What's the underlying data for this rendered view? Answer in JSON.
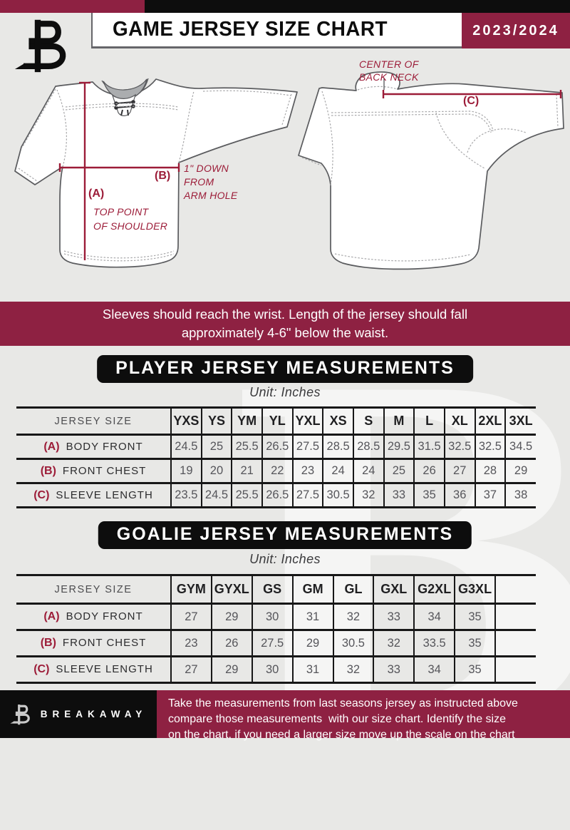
{
  "header": {
    "title": "GAME JERSEY SIZE CHART",
    "season": "2023/2024"
  },
  "diagram": {
    "front": {
      "a_key": "(A)",
      "a_note": [
        "TOP POINT",
        "OF SHOULDER"
      ],
      "b_key": "(B)",
      "b_note": [
        "1\" DOWN",
        "FROM",
        "ARM HOLE"
      ]
    },
    "back": {
      "c_key": "(C)",
      "neck_note": [
        "CENTER OF",
        "BACK NECK"
      ]
    }
  },
  "note": [
    "Sleeves should reach the wrist. Length of the jersey should fall",
    "approximately 4-6\" below the waist."
  ],
  "sections": {
    "player": {
      "title": "PLAYER JERSEY MEASUREMENTS",
      "unit": "Unit: Inches",
      "table": {
        "size_label": "JERSEY SIZE",
        "columns": [
          "YXS",
          "YS",
          "YM",
          "YL",
          "YXL",
          "XS",
          "S",
          "M",
          "L",
          "XL",
          "2XL",
          "3XL"
        ],
        "rows": [
          {
            "key": "(A)",
            "label": "BODY FRONT",
            "values": [
              "24.5",
              "25",
              "25.5",
              "26.5",
              "27.5",
              "28.5",
              "28.5",
              "29.5",
              "31.5",
              "32.5",
              "32.5",
              "34.5"
            ]
          },
          {
            "key": "(B)",
            "label": "FRONT CHEST",
            "values": [
              "19",
              "20",
              "21",
              "22",
              "23",
              "24",
              "24",
              "25",
              "26",
              "27",
              "28",
              "29"
            ]
          },
          {
            "key": "(C)",
            "label": "SLEEVE LENGTH",
            "values": [
              "23.5",
              "24.5",
              "25.5",
              "26.5",
              "27.5",
              "30.5",
              "32",
              "33",
              "35",
              "36",
              "37",
              "38"
            ]
          }
        ]
      }
    },
    "goalie": {
      "title": "GOALIE JERSEY MEASUREMENTS",
      "unit": "Unit: Inches",
      "table": {
        "size_label": "JERSEY SIZE",
        "columns": [
          "GYM",
          "GYXL",
          "GS",
          "GM",
          "GL",
          "GXL",
          "G2XL",
          "G3XL",
          ""
        ],
        "rows": [
          {
            "key": "(A)",
            "label": "BODY FRONT",
            "values": [
              "27",
              "29",
              "30",
              "31",
              "32",
              "33",
              "34",
              "35",
              ""
            ]
          },
          {
            "key": "(B)",
            "label": "FRONT CHEST",
            "values": [
              "23",
              "26",
              "27.5",
              "29",
              "30.5",
              "32",
              "33.5",
              "35",
              ""
            ]
          },
          {
            "key": "(C)",
            "label": "SLEEVE LENGTH",
            "values": [
              "27",
              "29",
              "30",
              "31",
              "32",
              "33",
              "34",
              "35",
              ""
            ]
          }
        ]
      }
    }
  },
  "footer": {
    "brand": "BREAKAWAY",
    "lines": [
      "Take the measurements from last seasons jersey as instructed above",
      "compare those measurements  with our size chart. Identify the size",
      "on the chart, if you need a larger size move up the scale on the chart"
    ]
  },
  "colors": {
    "maroon": "#8E2142",
    "annotation_maroon": "#9C1C38",
    "black": "#0D0D0D",
    "page_bg": "#E8E8E6"
  }
}
